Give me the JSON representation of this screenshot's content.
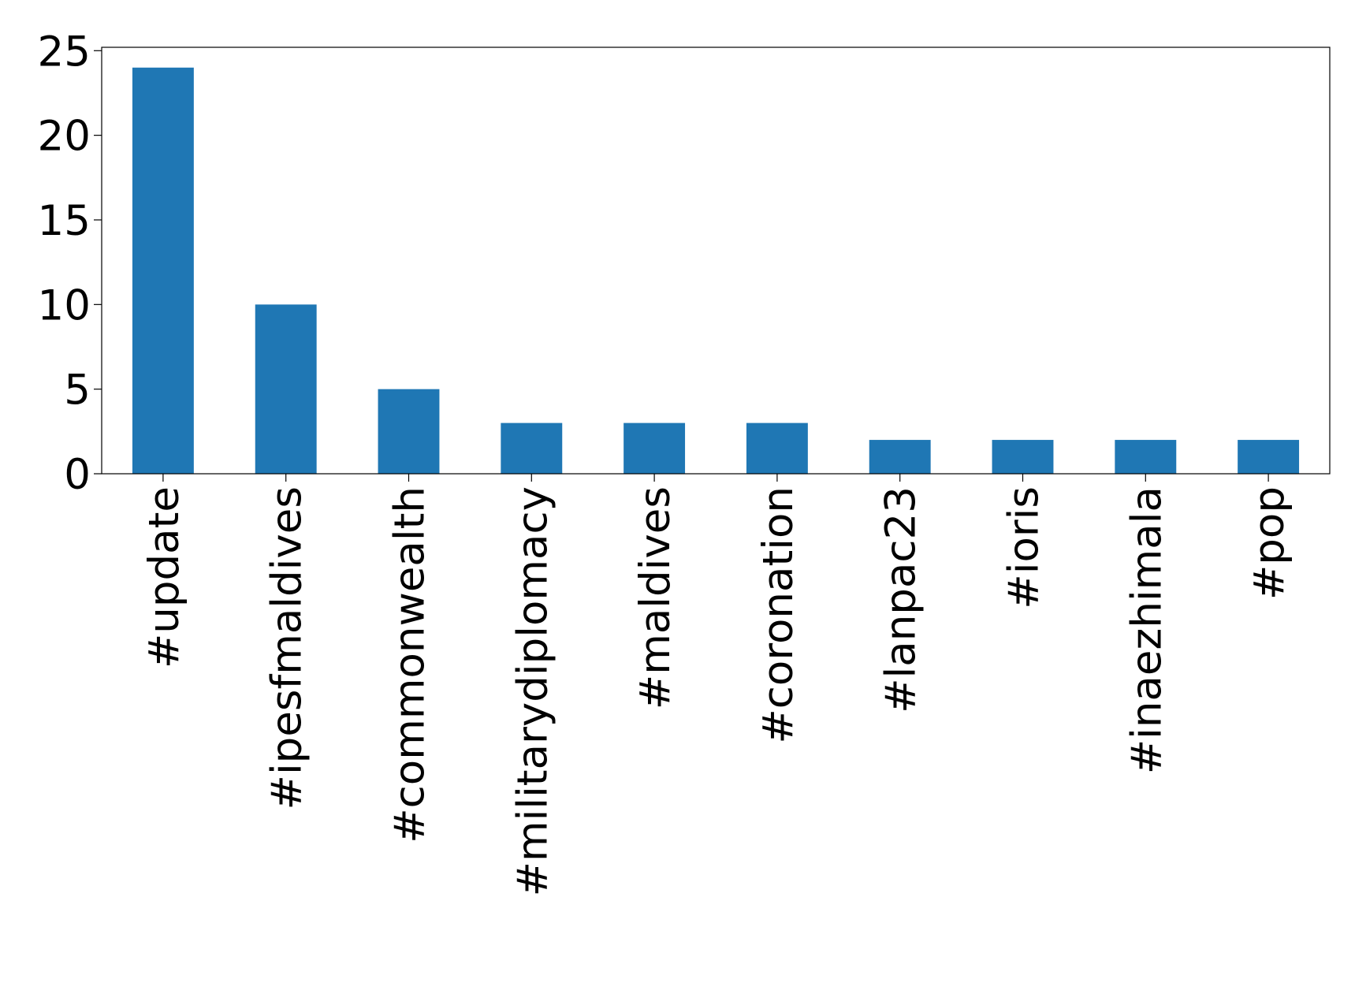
{
  "chart_data": {
    "type": "bar",
    "categories": [
      "#update",
      "#ipesfmaldives",
      "#commonwealth",
      "#militarydiplomacy",
      "#maldives",
      "#coronation",
      "#lanpac23",
      "#ioris",
      "#inaezhimala",
      "#pop"
    ],
    "values": [
      24,
      10,
      5,
      3,
      3,
      3,
      2,
      2,
      2,
      2
    ],
    "color": "#1f77b4",
    "ylim": [
      0,
      25.2
    ],
    "yticks": [
      0,
      5,
      10,
      15,
      20,
      25
    ],
    "grid": false
  }
}
